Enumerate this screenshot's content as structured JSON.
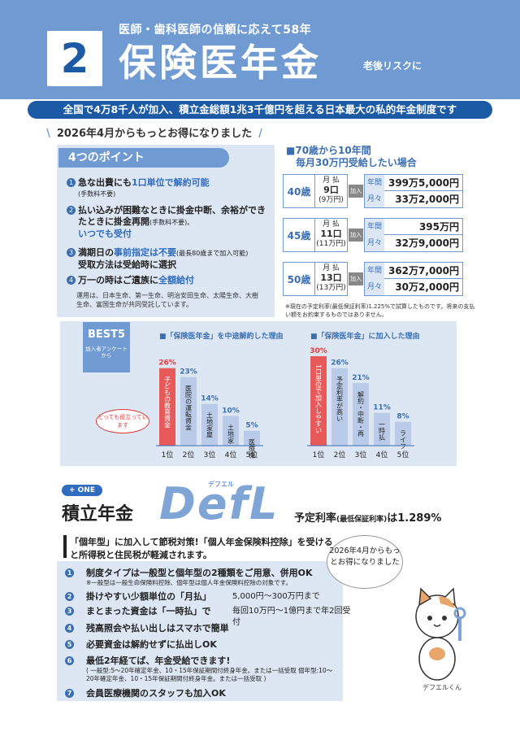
{
  "header": {
    "number": "2",
    "subtitle": "医師・歯科医師の信頼に応えて58年",
    "title": "保険医年金",
    "side_note": "老後リスクに"
  },
  "tagline": "全国で4万8千人が加入、積立金総額1兆3千億円を超える日本最大の私的年金制度です",
  "intro": "2026年4月からもっとお得になりました",
  "points": {
    "heading": "4つのポイント",
    "items": [
      {
        "num": "1",
        "pre": "急な出費にも",
        "hl": "1口単位で解約可能",
        "post": "",
        "sub": "(手数料不要)"
      },
      {
        "num": "2",
        "pre": "払い込みが困難なときに掛金中断、余裕ができたときに掛金再開",
        "hl": "",
        "post": "",
        "sub": "(手数料不要)。",
        "extra": "いつでも受付"
      },
      {
        "num": "3",
        "pre": "満期日の",
        "hl": "事前指定は不要",
        "post": "",
        "sub": "(最長80歳まで加入可能)",
        "extra": "受取方法は受給時に選択"
      },
      {
        "num": "4",
        "pre": "万一の時はご遺族に",
        "hl": "全額給付",
        "post": "",
        "sub": ""
      }
    ],
    "footer": "運用は、日本生命、第一生命、明治安田生命、太陽生命、大樹生命、富国生命が共同受託しています。"
  },
  "pension_table": {
    "heading_line1": "■70歳から10年間",
    "heading_line2": "毎月30万円受給したい場合",
    "pay_label": "月 払",
    "annual_label": "年間",
    "monthly_label": "月々",
    "arrow_label": "加入",
    "rows": [
      {
        "age": "40歳",
        "units": "9口",
        "yen": "(9万円)",
        "annual": "399万5,000円",
        "monthly": "33万2,000円"
      },
      {
        "age": "45歳",
        "units": "11口",
        "yen": "(11万円)",
        "annual": "395万円",
        "monthly": "32万9,000円"
      },
      {
        "age": "50歳",
        "units": "13口",
        "yen": "(13万円)",
        "annual": "362万7,000円",
        "monthly": "30万2,000円"
      }
    ],
    "note": "※現在の予定利率(最低保証利率)1.225%で試算したものです。将来の支払い額をお約束するものではありません。"
  },
  "best5": {
    "badge": "BEST5",
    "badge_sub": "加入者アンケートから",
    "bubble": "とっても役立っています",
    "rank_labels": [
      "1位",
      "2位",
      "3位",
      "4位",
      "5位"
    ]
  },
  "chart_data": [
    {
      "type": "bar",
      "title": "■「保険医年金」を中途解約した理由",
      "categories": [
        "子どもの教育資金",
        "医院の運転資金",
        "土地家屋の改修",
        "土地家屋の購入",
        "医療機器の購入"
      ],
      "values": [
        26,
        23,
        14,
        10,
        5
      ],
      "value_labels": [
        "26%",
        "23%",
        "14%",
        "10%",
        "5%"
      ],
      "highlight_color": "#e85a5a",
      "bar_color": "#b9cbe8"
    },
    {
      "type": "bar",
      "title": "■「保険医年金」に加入した理由",
      "categories": [
        "1口単位で加入しやすい",
        "予定利率が高い",
        "解約・中断・再開など自在性に優れている",
        "一時払いが有利",
        "ライフプランがたてやすい"
      ],
      "values": [
        30,
        26,
        21,
        11,
        8
      ],
      "value_labels": [
        "30%",
        "26%",
        "21%",
        "11%",
        "8%"
      ],
      "highlight_color": "#e85a5a",
      "bar_color": "#b9cbe8"
    }
  ],
  "defl": {
    "one_badge": "+ ONE",
    "name": "積立年金",
    "logo": "DefL",
    "ruby": "デフエル",
    "rate_pre": "予定利率",
    "rate_sub": "(最低保証利率)",
    "rate_post": "は1.289%",
    "plan_text": "「個年型」に加入して節税対策!「個人年金保険料控除」を受けると所得税と住民税が軽減されます。",
    "speech": "2026年4月からもっとお得になりました",
    "cat_name": "デフエルくん",
    "items": [
      {
        "num": "1",
        "text": "制度タイプは一般型と個年型の2種類をご用意、併用OK",
        "note": "※一般型は一般生命保険料控除、個年型は個人年金保険料控除の対象です。",
        "right": ""
      },
      {
        "num": "2",
        "text": "掛けやすい少額単位の「月払」",
        "note": "",
        "right": "5,000円〜300万円まで"
      },
      {
        "num": "3",
        "text": "まとまった資金は「一時払」で",
        "note": "",
        "right": "毎回10万円〜1億円まで年2回受付"
      },
      {
        "num": "4",
        "text": "残高照会や払い出しはスマホで簡単",
        "note": "",
        "right": ""
      },
      {
        "num": "5",
        "text": "必要資金は解約せずに払出しOK",
        "note": "",
        "right": ""
      },
      {
        "num": "6",
        "text": "最低2年経てば、年金受給できます!",
        "note": "( 一般型:5〜20年確定年金、10・15年保証期間付終身年金。または一括受取 個年型:10〜20年確定年金、10・15年保証期間付終身年金。または一括受取 )",
        "right": ""
      },
      {
        "num": "7",
        "text": "会員医療機関のスタッフも加入OK",
        "note": "",
        "right": ""
      }
    ]
  }
}
